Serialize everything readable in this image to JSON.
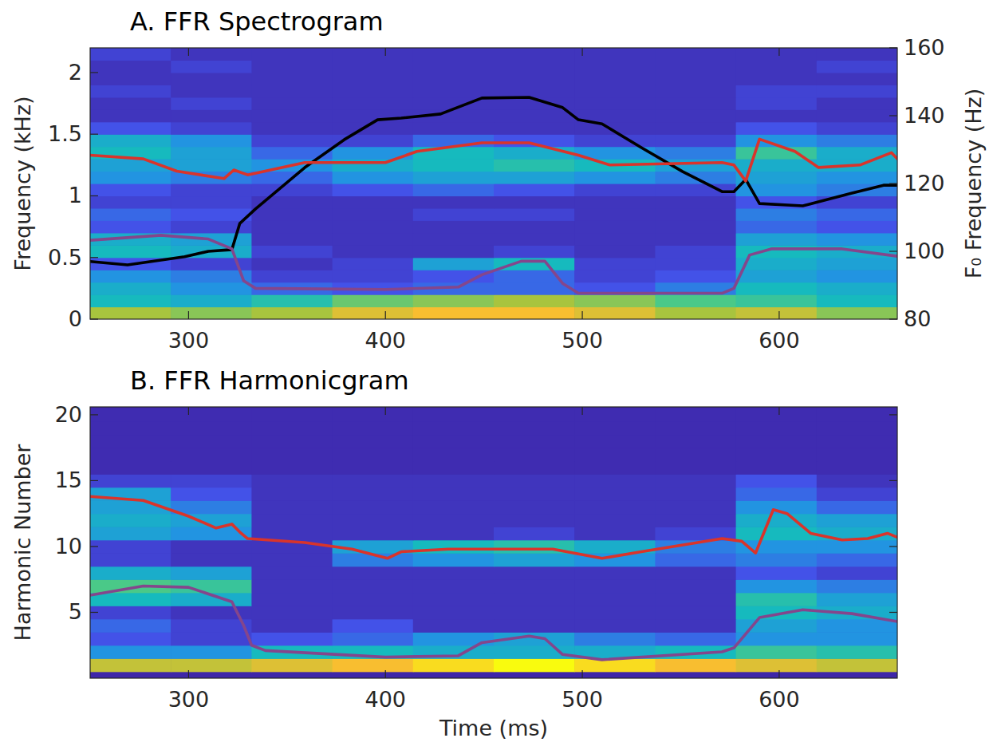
{
  "chart_data": [
    {
      "type": "heatmap",
      "title": "A. FFR Spectrogram",
      "y_label": "Frequency (kHz)",
      "y2_label": "F₀ Frequency (Hz)",
      "xlim": [
        250,
        660
      ],
      "ylim": [
        0,
        2.2
      ],
      "y2lim": [
        80,
        160
      ],
      "xticks": [
        300,
        400,
        500,
        600
      ],
      "yticks": [
        0,
        0.5,
        1,
        1.5,
        2
      ],
      "y2ticks": [
        80,
        100,
        120,
        140,
        160
      ],
      "grid": false,
      "heatmap": {
        "zlim": [
          0,
          1
        ],
        "x_edges": [
          250,
          291,
          332,
          373,
          414,
          455,
          496,
          537,
          578,
          619,
          660
        ],
        "y_edges": [
          0,
          0.1,
          0.2,
          0.3,
          0.4,
          0.5,
          0.6,
          0.7,
          0.8,
          0.9,
          1.0,
          1.1,
          1.2,
          1.3,
          1.4,
          1.5,
          1.6,
          1.7,
          1.8,
          1.9,
          2.0,
          2.1,
          2.2
        ],
        "cells": [
          [
            0.75,
            0.7,
            0.75,
            0.85,
            0.9,
            0.9,
            0.85,
            0.75,
            0.8,
            0.7
          ],
          [
            0.45,
            0.4,
            0.5,
            0.65,
            0.7,
            0.75,
            0.7,
            0.6,
            0.55,
            0.45
          ],
          [
            0.4,
            0.3,
            0.2,
            0.15,
            0.2,
            0.2,
            0.15,
            0.25,
            0.45,
            0.4
          ],
          [
            0.3,
            0.25,
            0.1,
            0.1,
            0.15,
            0.2,
            0.1,
            0.15,
            0.35,
            0.3
          ],
          [
            0.15,
            0.1,
            0.05,
            0.1,
            0.35,
            0.45,
            0.1,
            0.1,
            0.4,
            0.35
          ],
          [
            0.45,
            0.4,
            0.1,
            0.05,
            0.05,
            0.1,
            0.05,
            0.1,
            0.45,
            0.4
          ],
          [
            0.4,
            0.35,
            0.05,
            0.05,
            0.05,
            0.05,
            0.05,
            0.05,
            0.35,
            0.3
          ],
          [
            0.15,
            0.1,
            0.05,
            0.05,
            0.05,
            0.05,
            0.05,
            0.05,
            0.2,
            0.15
          ],
          [
            0.2,
            0.15,
            0.05,
            0.05,
            0.1,
            0.1,
            0.05,
            0.05,
            0.25,
            0.2
          ],
          [
            0.1,
            0.1,
            0.05,
            0.05,
            0.05,
            0.05,
            0.05,
            0.05,
            0.15,
            0.1
          ],
          [
            0.15,
            0.1,
            0.1,
            0.15,
            0.2,
            0.15,
            0.1,
            0.1,
            0.3,
            0.25
          ],
          [
            0.3,
            0.25,
            0.2,
            0.3,
            0.35,
            0.35,
            0.3,
            0.25,
            0.35,
            0.3
          ],
          [
            0.35,
            0.35,
            0.3,
            0.4,
            0.45,
            0.5,
            0.45,
            0.35,
            0.4,
            0.4
          ],
          [
            0.45,
            0.35,
            0.2,
            0.3,
            0.45,
            0.4,
            0.3,
            0.25,
            0.55,
            0.4
          ],
          [
            0.4,
            0.3,
            0.1,
            0.1,
            0.2,
            0.15,
            0.1,
            0.1,
            0.3,
            0.25
          ],
          [
            0.15,
            0.1,
            0.05,
            0.05,
            0.05,
            0.05,
            0.05,
            0.05,
            0.15,
            0.1
          ],
          [
            0.05,
            0.05,
            0.05,
            0.05,
            0.05,
            0.05,
            0.05,
            0.05,
            0.05,
            0.05
          ],
          [
            0.05,
            0.1,
            0.05,
            0.05,
            0.05,
            0.05,
            0.05,
            0.05,
            0.1,
            0.05
          ],
          [
            0.1,
            0.05,
            0.05,
            0.05,
            0.05,
            0.05,
            0.05,
            0.05,
            0.1,
            0.1
          ],
          [
            0.05,
            0.05,
            0.05,
            0.05,
            0.05,
            0.05,
            0.05,
            0.05,
            0.05,
            0.05
          ],
          [
            0.05,
            0.1,
            0.05,
            0.05,
            0.05,
            0.05,
            0.05,
            0.05,
            0.05,
            0.1
          ],
          [
            0.1,
            0.05,
            0.05,
            0.05,
            0.05,
            0.05,
            0.05,
            0.05,
            0.05,
            0.05
          ]
        ]
      },
      "series": [
        {
          "type": "line",
          "color": "#000000",
          "axis": "y2",
          "x": [
            250,
            269,
            298,
            310,
            322,
            326,
            334,
            359,
            379,
            396,
            408,
            428,
            449,
            473,
            490,
            498,
            510,
            530,
            551,
            571,
            577,
            583,
            590,
            612,
            637,
            653,
            660
          ],
          "values": [
            97,
            96,
            98.4,
            100,
            100.5,
            108.2,
            112.5,
            124.7,
            132.9,
            138.8,
            139.3,
            140.5,
            145.2,
            145.4,
            142.4,
            138.8,
            137.6,
            130.6,
            123.5,
            117.6,
            117.6,
            121.2,
            114.1,
            113.4,
            117.2,
            119.5,
            119.5
          ]
        },
        {
          "type": "line",
          "color": "#d9342b",
          "axis": "y",
          "x": [
            250,
            277,
            294,
            318,
            323,
            330,
            359,
            400,
            416,
            449,
            473,
            498,
            514,
            571,
            577,
            583,
            590,
            608,
            620,
            641,
            657,
            660
          ],
          "values": [
            1.33,
            1.3,
            1.2,
            1.14,
            1.21,
            1.17,
            1.27,
            1.27,
            1.36,
            1.43,
            1.43,
            1.33,
            1.25,
            1.27,
            1.25,
            1.12,
            1.46,
            1.36,
            1.23,
            1.25,
            1.35,
            1.3
          ]
        },
        {
          "type": "line",
          "color": "#84468c",
          "axis": "y",
          "x": [
            250,
            286,
            310,
            322,
            328,
            334,
            400,
            437,
            449,
            469,
            481,
            490,
            498,
            571,
            577,
            585,
            596,
            632,
            660
          ],
          "values": [
            0.64,
            0.68,
            0.65,
            0.57,
            0.31,
            0.25,
            0.24,
            0.26,
            0.36,
            0.47,
            0.47,
            0.29,
            0.21,
            0.21,
            0.25,
            0.52,
            0.57,
            0.57,
            0.51
          ]
        }
      ]
    },
    {
      "type": "heatmap",
      "title": "B. FFR Harmonicgram",
      "x_label": "Time (ms)",
      "y_label": "Harmonic Number",
      "xlim": [
        250,
        660
      ],
      "ylim": [
        0,
        20.6
      ],
      "xticks": [
        300,
        400,
        500,
        600
      ],
      "yticks": [
        5,
        10,
        15,
        20
      ],
      "grid": false,
      "heatmap": {
        "zlim": [
          0,
          1
        ],
        "x_edges": [
          250,
          291,
          332,
          373,
          414,
          455,
          496,
          537,
          578,
          619,
          660
        ],
        "y_edges": [
          0.5,
          1.5,
          2.5,
          3.5,
          4.5,
          5.5,
          6.5,
          7.5,
          8.5,
          9.5,
          10.5,
          11.5,
          12.5,
          13.5,
          14.5,
          15.5,
          16.5,
          17.5,
          18.5,
          19.5,
          20.5
        ],
        "cells": [
          [
            0.8,
            0.8,
            0.85,
            0.9,
            0.95,
            1.0,
            0.95,
            0.9,
            0.85,
            0.8
          ],
          [
            0.3,
            0.3,
            0.45,
            0.45,
            0.4,
            0.4,
            0.4,
            0.45,
            0.55,
            0.5
          ],
          [
            0.15,
            0.1,
            0.15,
            0.2,
            0.3,
            0.35,
            0.25,
            0.2,
            0.3,
            0.3
          ],
          [
            0.2,
            0.1,
            0.05,
            0.15,
            0.05,
            0.05,
            0.05,
            0.05,
            0.35,
            0.3
          ],
          [
            0.1,
            0.05,
            0.05,
            0.05,
            0.05,
            0.05,
            0.05,
            0.05,
            0.45,
            0.4
          ],
          [
            0.45,
            0.4,
            0.05,
            0.05,
            0.05,
            0.05,
            0.05,
            0.05,
            0.5,
            0.35
          ],
          [
            0.6,
            0.55,
            0.05,
            0.05,
            0.05,
            0.05,
            0.05,
            0.05,
            0.3,
            0.25
          ],
          [
            0.4,
            0.35,
            0.05,
            0.05,
            0.05,
            0.05,
            0.05,
            0.05,
            0.15,
            0.1
          ],
          [
            0.1,
            0.05,
            0.05,
            0.25,
            0.3,
            0.35,
            0.3,
            0.2,
            0.25,
            0.2
          ],
          [
            0.1,
            0.05,
            0.05,
            0.35,
            0.45,
            0.5,
            0.4,
            0.25,
            0.3,
            0.3
          ],
          [
            0.35,
            0.3,
            0.05,
            0.05,
            0.05,
            0.1,
            0.05,
            0.1,
            0.45,
            0.4
          ],
          [
            0.4,
            0.35,
            0.05,
            0.05,
            0.05,
            0.05,
            0.05,
            0.05,
            0.4,
            0.35
          ],
          [
            0.35,
            0.25,
            0.05,
            0.05,
            0.05,
            0.05,
            0.05,
            0.05,
            0.3,
            0.2
          ],
          [
            0.35,
            0.15,
            0.05,
            0.05,
            0.05,
            0.05,
            0.05,
            0.05,
            0.2,
            0.1
          ],
          [
            0.1,
            0.1,
            0.05,
            0.05,
            0.05,
            0.05,
            0.05,
            0.05,
            0.15,
            0.05
          ],
          [
            0.02,
            0.02,
            0.02,
            0.02,
            0.02,
            0.02,
            0.02,
            0.02,
            0.02,
            0.02
          ],
          [
            0.02,
            0.02,
            0.02,
            0.02,
            0.02,
            0.02,
            0.02,
            0.02,
            0.02,
            0.02
          ],
          [
            0.02,
            0.02,
            0.02,
            0.02,
            0.02,
            0.02,
            0.02,
            0.02,
            0.02,
            0.02
          ],
          [
            0.02,
            0.02,
            0.02,
            0.02,
            0.02,
            0.02,
            0.02,
            0.02,
            0.02,
            0.02
          ],
          [
            0.02,
            0.02,
            0.02,
            0.02,
            0.02,
            0.02,
            0.02,
            0.02,
            0.02,
            0.02
          ]
        ]
      },
      "series": [
        {
          "type": "line",
          "color": "#d9342b",
          "axis": "y",
          "x": [
            250,
            277,
            300,
            314,
            322,
            326,
            330,
            359,
            383,
            401,
            408,
            432,
            485,
            510,
            530,
            571,
            581,
            588,
            597,
            604,
            616,
            632,
            645,
            655,
            660
          ],
          "values": [
            13.8,
            13.5,
            12.3,
            11.4,
            11.7,
            11.1,
            10.6,
            10.3,
            9.8,
            9.1,
            9.6,
            9.8,
            9.8,
            9.1,
            9.6,
            10.6,
            10.4,
            9.5,
            12.8,
            12.5,
            11.0,
            10.5,
            10.6,
            11.0,
            10.7
          ]
        },
        {
          "type": "line",
          "color": "#84468c",
          "axis": "y",
          "x": [
            250,
            277,
            300,
            322,
            328,
            332,
            339,
            400,
            437,
            449,
            473,
            481,
            490,
            510,
            571,
            577,
            590,
            612,
            637,
            660
          ],
          "values": [
            6.3,
            7.0,
            6.9,
            5.8,
            4.0,
            2.5,
            2.1,
            1.6,
            1.7,
            2.7,
            3.2,
            3.0,
            1.8,
            1.4,
            2.0,
            2.3,
            4.6,
            5.2,
            4.9,
            4.3
          ]
        }
      ]
    }
  ]
}
